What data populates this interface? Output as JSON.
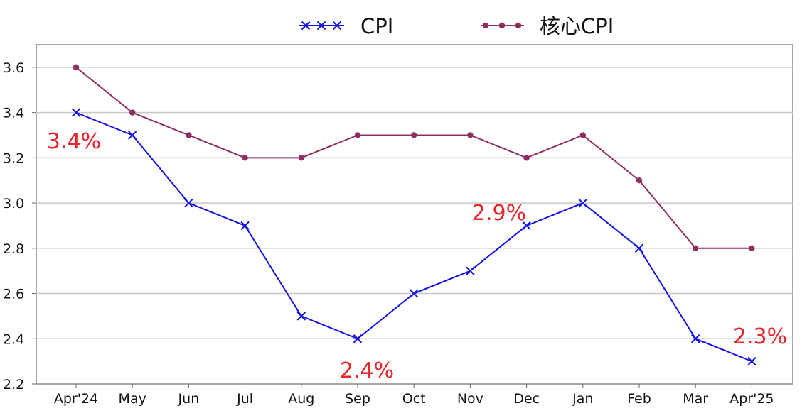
{
  "chart_data": {
    "type": "line",
    "categories": [
      "Apr'24",
      "May",
      "Jun",
      "Jul",
      "Aug",
      "Sep",
      "Oct",
      "Nov",
      "Dec",
      "Jan",
      "Feb",
      "Mar",
      "Apr'25"
    ],
    "series": [
      {
        "name": "CPI",
        "color": "#1414e0",
        "marker": "x",
        "values": [
          3.4,
          3.3,
          3.0,
          2.9,
          2.5,
          2.4,
          2.6,
          2.7,
          2.9,
          3.0,
          2.8,
          2.4,
          2.3
        ]
      },
      {
        "name": "核心CPI",
        "color": "#8e2f63",
        "marker": "dot",
        "values": [
          3.6,
          3.4,
          3.3,
          3.2,
          3.2,
          3.3,
          3.3,
          3.3,
          3.2,
          3.3,
          3.1,
          2.8,
          2.8
        ]
      }
    ],
    "ylim": [
      2.2,
      3.7
    ],
    "yticks": [
      "2.2",
      "2.4",
      "2.6",
      "2.8",
      "3.0",
      "3.2",
      "3.4",
      "3.6"
    ],
    "grid": true,
    "legend_position": "top-center",
    "annotations": [
      {
        "text": "3.4%",
        "category_index": 0,
        "color": "#e8262b"
      },
      {
        "text": "2.4%",
        "category_index": 5,
        "color": "#e8262b"
      },
      {
        "text": "2.9%",
        "category_index": 8,
        "color": "#e8262b"
      },
      {
        "text": "2.3%",
        "category_index": 12,
        "color": "#e8262b"
      }
    ]
  }
}
